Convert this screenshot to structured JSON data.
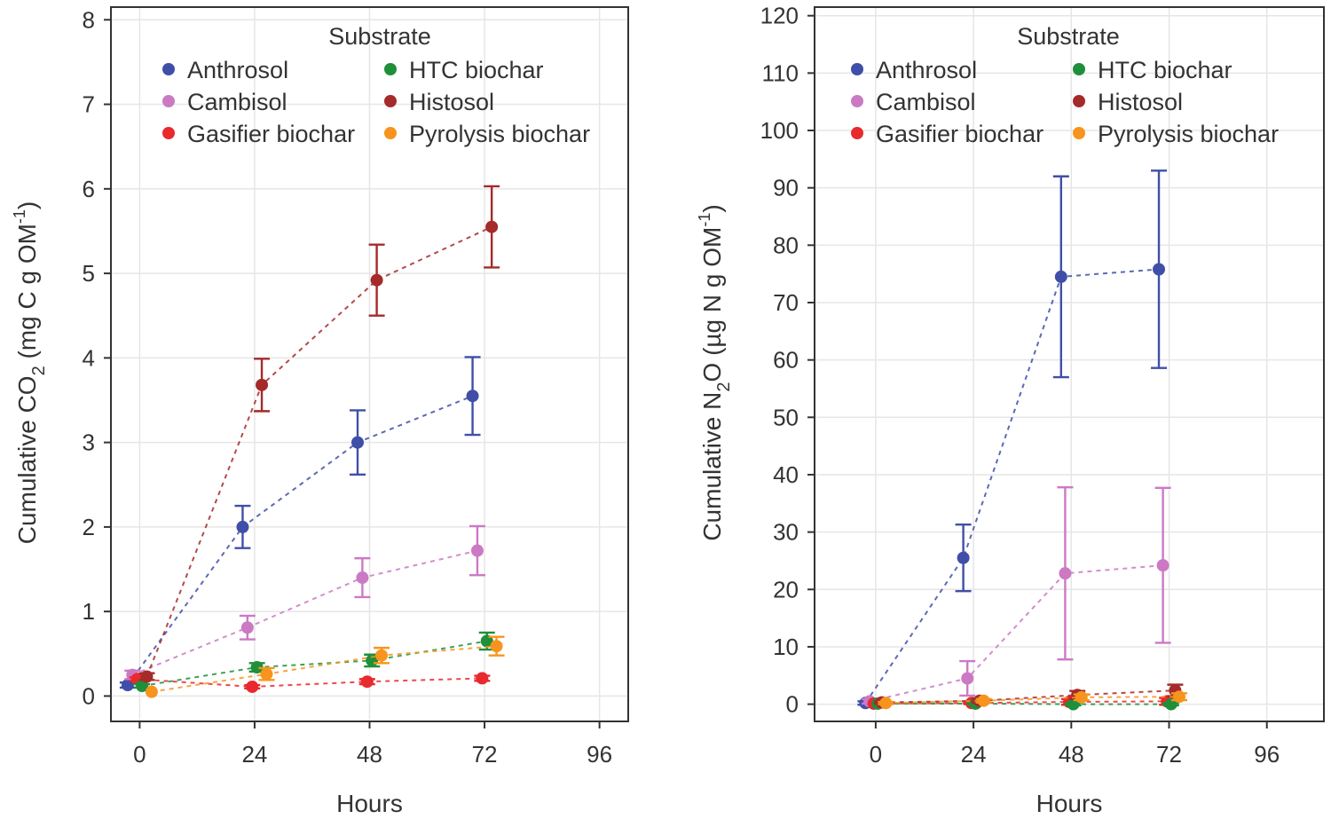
{
  "chart_data": [
    {
      "type": "scatter",
      "panel": "left",
      "title": "",
      "xlabel": "Hours",
      "ylabel": {
        "prefix": "Cumulative CO",
        "sub": "2",
        "unit": " (mg C g OM",
        "sup": "-1",
        "close": ")"
      },
      "xlim": [
        -6,
        102
      ],
      "ylim": [
        -0.3,
        8.15
      ],
      "xticks": [
        0,
        24,
        48,
        72,
        96
      ],
      "yticks": [
        0,
        1,
        2,
        3,
        4,
        5,
        6,
        7,
        8
      ],
      "grid": true,
      "legend": {
        "title": "Substrate",
        "position": "top-left"
      },
      "series": [
        {
          "name": "Anthrosol",
          "color": "#3F4FA8",
          "dodge": -2.5,
          "x": [
            0,
            24,
            48,
            72
          ],
          "y": [
            0.13,
            2.0,
            3.0,
            3.55
          ],
          "err": [
            0.03,
            0.25,
            0.38,
            0.46
          ]
        },
        {
          "name": "Cambisol",
          "color": "#CC79C4",
          "dodge": -1.5,
          "x": [
            0,
            24,
            48,
            72
          ],
          "y": [
            0.25,
            0.81,
            1.4,
            1.72
          ],
          "err": [
            0.05,
            0.14,
            0.23,
            0.29
          ]
        },
        {
          "name": "Gasifier biochar",
          "color": "#E8292E",
          "dodge": -0.5,
          "x": [
            0,
            24,
            48,
            72
          ],
          "y": [
            0.2,
            0.11,
            0.17,
            0.21
          ],
          "err": [
            0.02,
            0.02,
            0.03,
            0.03
          ]
        },
        {
          "name": "HTC biochar",
          "color": "#1F8F3A",
          "dodge": 0.5,
          "x": [
            0,
            24,
            48,
            72
          ],
          "y": [
            0.12,
            0.34,
            0.42,
            0.65
          ],
          "err": [
            0.02,
            0.05,
            0.07,
            0.1
          ]
        },
        {
          "name": "Histosol",
          "color": "#A52A2A",
          "dodge": 1.5,
          "x": [
            0,
            24,
            48,
            72
          ],
          "y": [
            0.23,
            3.68,
            4.92,
            5.55
          ],
          "err": [
            0.04,
            0.31,
            0.42,
            0.48
          ]
        },
        {
          "name": "Pyrolysis biochar",
          "color": "#F7941D",
          "dodge": 2.5,
          "x": [
            0,
            24,
            48,
            72
          ],
          "y": [
            0.05,
            0.26,
            0.48,
            0.59
          ],
          "err": [
            0.01,
            0.07,
            0.09,
            0.11
          ]
        }
      ]
    },
    {
      "type": "scatter",
      "panel": "right",
      "title": "",
      "xlabel": "Hours",
      "ylabel": {
        "prefix": "Cumulative N",
        "sub": "2",
        "unit": "O (µg N g OM",
        "sup": "-1",
        "close": ")"
      },
      "xlim": [
        -15,
        110
      ],
      "ylim": [
        -3,
        121.5
      ],
      "xticks": [
        0,
        24,
        48,
        72,
        96
      ],
      "yticks": [
        0,
        10,
        20,
        30,
        40,
        50,
        60,
        70,
        80,
        90,
        100,
        110,
        120
      ],
      "grid": true,
      "legend": {
        "title": "Substrate",
        "position": "top-left"
      },
      "series": [
        {
          "name": "Anthrosol",
          "color": "#3F4FA8",
          "dodge": -2.5,
          "x": [
            0,
            24,
            48,
            72
          ],
          "y": [
            0.2,
            25.5,
            74.5,
            75.8
          ],
          "err": [
            0.3,
            5.8,
            17.5,
            17.2
          ]
        },
        {
          "name": "Cambisol",
          "color": "#CC79C4",
          "dodge": -1.5,
          "x": [
            0,
            24,
            48,
            72
          ],
          "y": [
            0.5,
            4.5,
            22.8,
            24.2
          ],
          "err": [
            0.4,
            3.0,
            15.0,
            13.5
          ]
        },
        {
          "name": "Gasifier biochar",
          "color": "#E8292E",
          "dodge": -0.5,
          "x": [
            0,
            24,
            48,
            72
          ],
          "y": [
            0.1,
            0.2,
            0.4,
            0.5
          ],
          "err": [
            0.1,
            0.2,
            0.5,
            0.6
          ]
        },
        {
          "name": "HTC biochar",
          "color": "#1F8F3A",
          "dodge": 0.5,
          "x": [
            0,
            24,
            48,
            72
          ],
          "y": [
            0.1,
            0.1,
            0.0,
            0.0
          ],
          "err": [
            0.1,
            0.2,
            0.2,
            0.2
          ]
        },
        {
          "name": "Histosol",
          "color": "#A52A2A",
          "dodge": 1.5,
          "x": [
            0,
            24,
            48,
            72
          ],
          "y": [
            0.3,
            0.6,
            1.6,
            2.4
          ],
          "err": [
            0.2,
            0.4,
            0.7,
            1.0
          ]
        },
        {
          "name": "Pyrolysis biochar",
          "color": "#F7941D",
          "dodge": 2.5,
          "x": [
            0,
            24,
            48,
            72
          ],
          "y": [
            0.2,
            0.6,
            1.2,
            1.3
          ],
          "err": [
            0.2,
            0.3,
            0.5,
            0.6
          ]
        }
      ]
    }
  ]
}
